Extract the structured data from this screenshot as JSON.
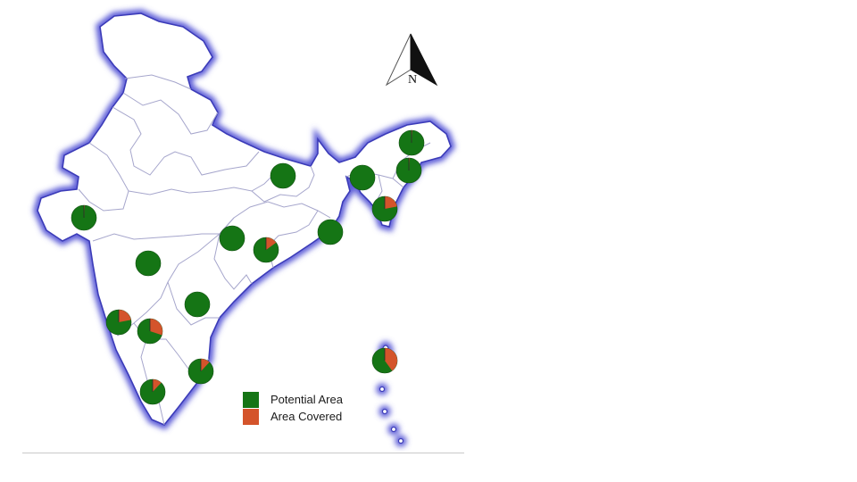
{
  "colors": {
    "potential": "#157515",
    "covered": "#d4542b",
    "border": "#6a6ad8",
    "land": "#ffffff",
    "state_lines": "#a6a6cc"
  },
  "compass": {
    "label": "N",
    "icon": "north-arrow-icon"
  },
  "legend": {
    "items": [
      {
        "label": "Potential Area",
        "color": "#157515"
      },
      {
        "label": "Area Covered",
        "color": "#d4542b"
      }
    ]
  },
  "markers": [
    {
      "covered_fraction": 0.01
    },
    {
      "covered_fraction": 0.0
    },
    {
      "covered_fraction": 0.0
    },
    {
      "covered_fraction": 0.0
    },
    {
      "covered_fraction": 0.0
    },
    {
      "covered_fraction": 0.15
    },
    {
      "covered_fraction": 0.0
    },
    {
      "covered_fraction": 0.01
    },
    {
      "covered_fraction": 0.01
    },
    {
      "covered_fraction": 0.22
    },
    {
      "covered_fraction": 0.0
    },
    {
      "covered_fraction": 0.22
    },
    {
      "covered_fraction": 0.3
    },
    {
      "covered_fraction": 0.12
    },
    {
      "covered_fraction": 0.12
    },
    {
      "covered_fraction": 0.4
    },
    {
      "covered_fraction": 0.4
    }
  ]
}
